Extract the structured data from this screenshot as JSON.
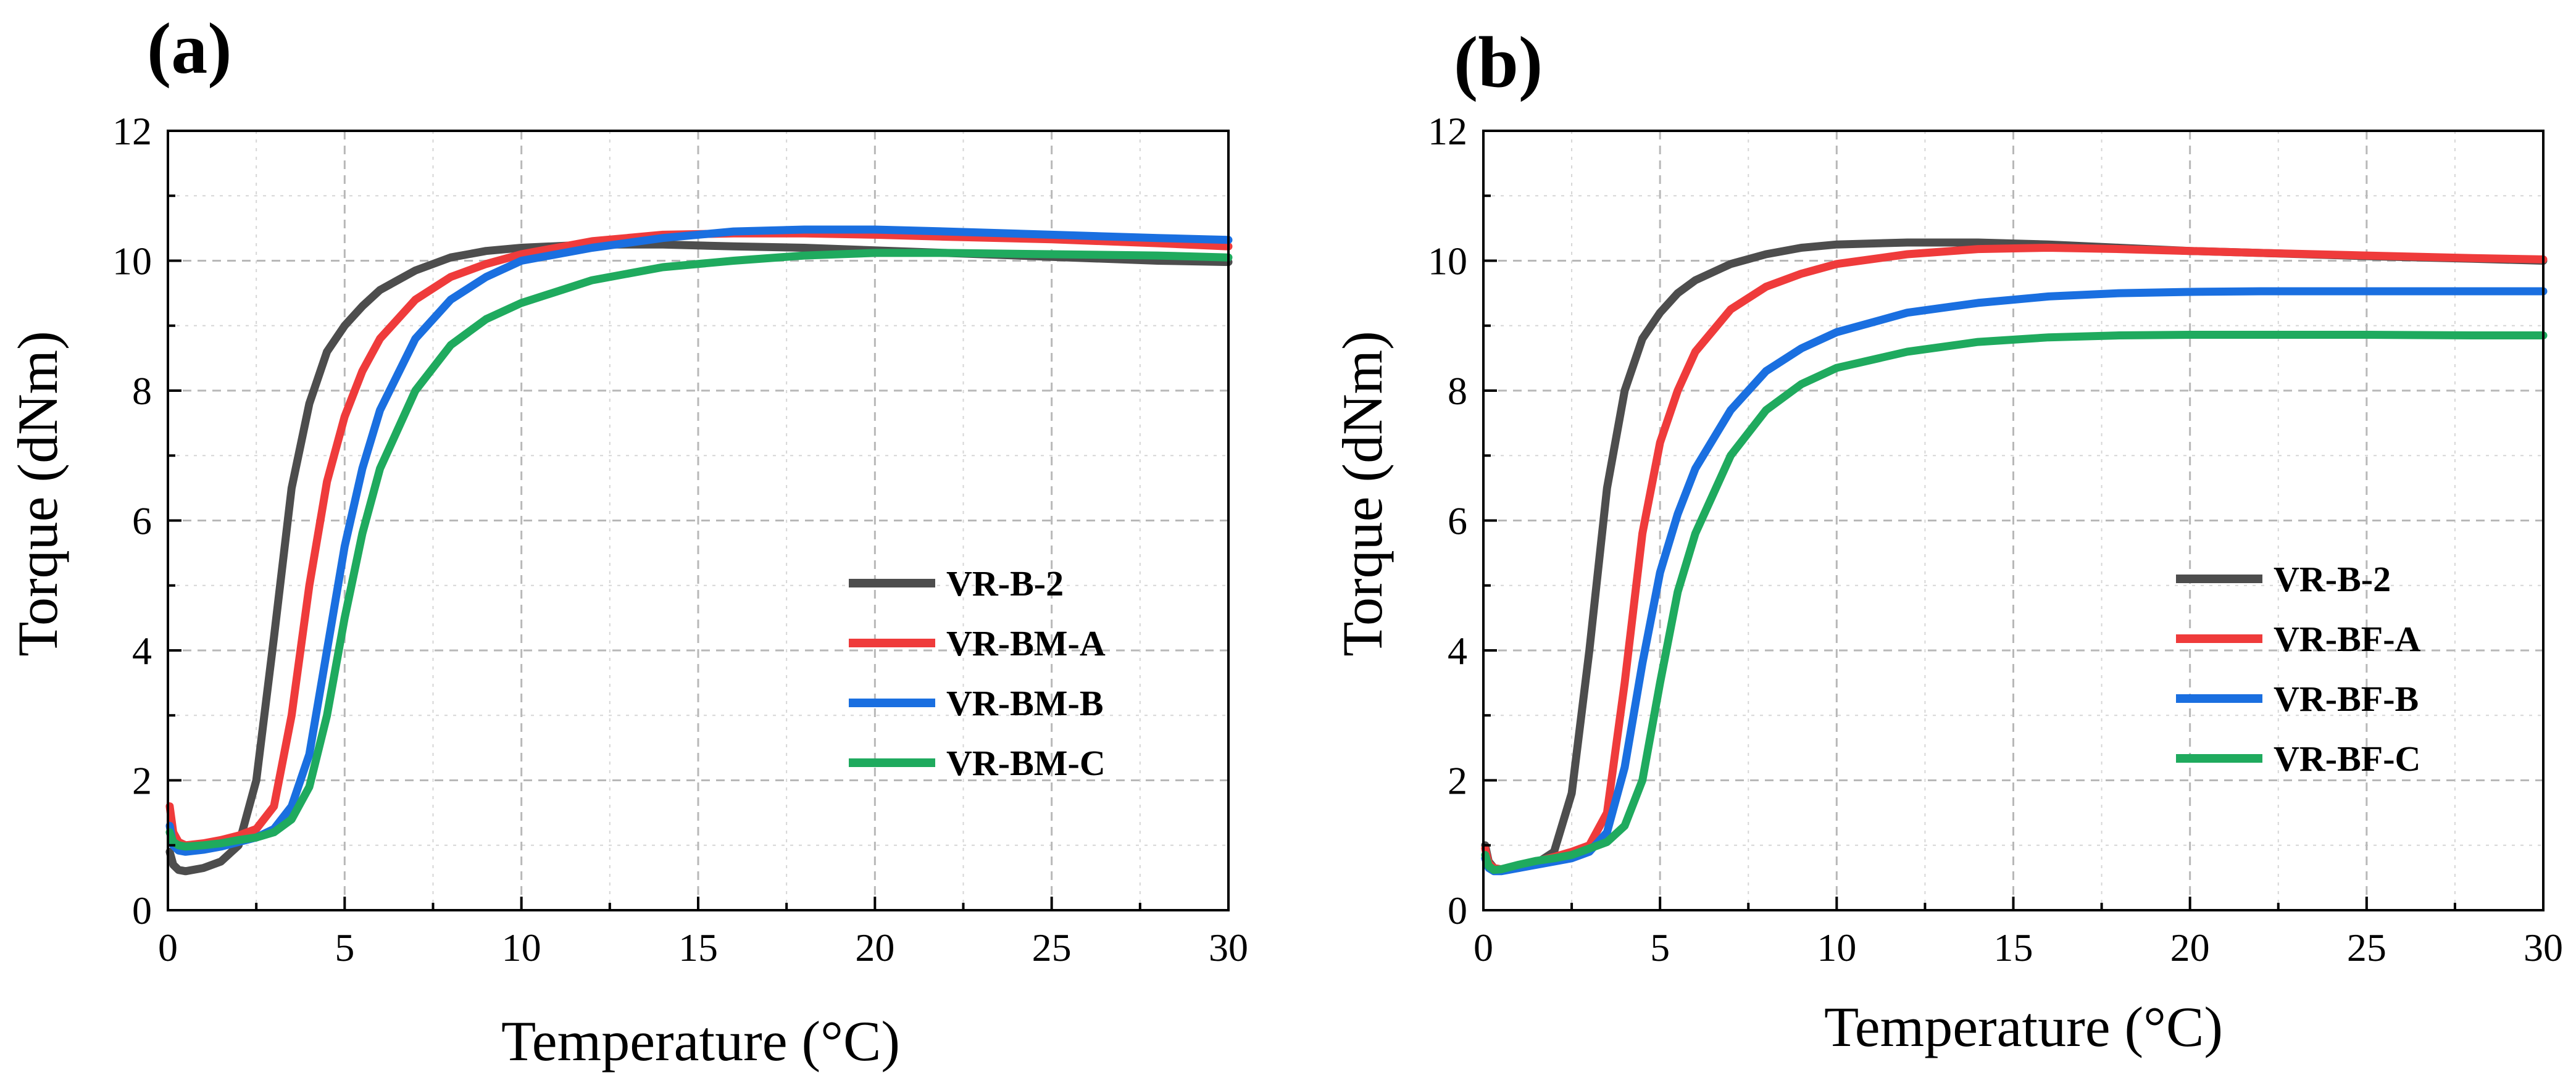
{
  "chart_data": [
    {
      "type": "line",
      "panel_label": "(a)",
      "xlabel": "Temperature (°C)",
      "ylabel": "Torque (dNm)",
      "xlim": [
        0,
        30
      ],
      "ylim": [
        0,
        12
      ],
      "xticks": [
        "0",
        "5",
        "10",
        "15",
        "20",
        "25",
        "30"
      ],
      "yticks": [
        "0",
        "2",
        "4",
        "6",
        "8",
        "10",
        "12"
      ],
      "grid": true,
      "legend_position": "center-right",
      "x": [
        0.05,
        0.15,
        0.3,
        0.5,
        1,
        1.5,
        2,
        2.5,
        3,
        3.5,
        4,
        4.5,
        5,
        5.5,
        6,
        7,
        8,
        9,
        10,
        12,
        14,
        16,
        18,
        20,
        22,
        25,
        28,
        30
      ],
      "series": [
        {
          "name": "VR-B-2",
          "color": "#4d4d4d",
          "values": [
            0.9,
            0.7,
            0.62,
            0.6,
            0.65,
            0.75,
            1.0,
            2.0,
            4.2,
            6.5,
            7.8,
            8.6,
            9.0,
            9.3,
            9.55,
            9.85,
            10.05,
            10.15,
            10.2,
            10.25,
            10.25,
            10.22,
            10.2,
            10.16,
            10.12,
            10.06,
            10.0,
            9.98
          ]
        },
        {
          "name": "VR-BM-A",
          "color": "#ef3b3b",
          "values": [
            1.6,
            1.2,
            1.05,
            1.0,
            1.03,
            1.08,
            1.15,
            1.25,
            1.6,
            3.0,
            5.0,
            6.6,
            7.6,
            8.3,
            8.8,
            9.4,
            9.75,
            9.95,
            10.1,
            10.3,
            10.4,
            10.42,
            10.42,
            10.4,
            10.37,
            10.33,
            10.27,
            10.22
          ]
        },
        {
          "name": "VR-BM-B",
          "color": "#1a6fe0",
          "values": [
            1.3,
            1.0,
            0.92,
            0.9,
            0.93,
            0.98,
            1.05,
            1.12,
            1.25,
            1.6,
            2.4,
            4.0,
            5.6,
            6.8,
            7.7,
            8.8,
            9.4,
            9.75,
            10.0,
            10.2,
            10.35,
            10.45,
            10.48,
            10.48,
            10.45,
            10.4,
            10.35,
            10.32
          ]
        },
        {
          "name": "VR-BM-C",
          "color": "#1faa5e",
          "values": [
            1.2,
            1.05,
            1.0,
            0.98,
            1.0,
            1.03,
            1.08,
            1.12,
            1.2,
            1.4,
            1.9,
            3.0,
            4.5,
            5.8,
            6.8,
            8.0,
            8.7,
            9.1,
            9.35,
            9.7,
            9.9,
            10.0,
            10.08,
            10.12,
            10.12,
            10.1,
            10.08,
            10.05
          ]
        }
      ],
      "legend": [
        "VR-B-2",
        "VR-BM-A",
        "VR-BM-B",
        "VR-BM-C"
      ]
    },
    {
      "type": "line",
      "panel_label": "(b)",
      "xlabel": "Temperature (°C)",
      "ylabel": "Torque (dNm)",
      "xlim": [
        0,
        30
      ],
      "ylim": [
        0,
        12
      ],
      "xticks": [
        "0",
        "5",
        "10",
        "15",
        "20",
        "25",
        "30"
      ],
      "yticks": [
        "0",
        "2",
        "4",
        "6",
        "8",
        "10",
        "12"
      ],
      "grid": true,
      "legend_position": "center-right",
      "x": [
        0.05,
        0.15,
        0.3,
        0.5,
        1,
        1.5,
        2,
        2.5,
        3,
        3.5,
        4,
        4.5,
        5,
        5.5,
        6,
        7,
        8,
        9,
        10,
        12,
        14,
        16,
        18,
        20,
        22,
        25,
        28,
        30
      ],
      "series": [
        {
          "name": "VR-B-2",
          "color": "#4d4d4d",
          "values": [
            1.0,
            0.75,
            0.65,
            0.62,
            0.65,
            0.72,
            0.9,
            1.8,
            4.0,
            6.5,
            8.0,
            8.8,
            9.2,
            9.5,
            9.7,
            9.95,
            10.1,
            10.2,
            10.25,
            10.28,
            10.28,
            10.25,
            10.2,
            10.15,
            10.12,
            10.07,
            10.03,
            10.0
          ]
        },
        {
          "name": "VR-BF-A",
          "color": "#ef3b3b",
          "values": [
            0.95,
            0.72,
            0.65,
            0.63,
            0.68,
            0.75,
            0.82,
            0.9,
            1.0,
            1.5,
            3.5,
            5.8,
            7.2,
            8.0,
            8.6,
            9.25,
            9.6,
            9.8,
            9.95,
            10.1,
            10.18,
            10.2,
            10.18,
            10.15,
            10.12,
            10.08,
            10.04,
            10.02
          ]
        },
        {
          "name": "VR-BF-B",
          "color": "#1a6fe0",
          "values": [
            0.8,
            0.65,
            0.6,
            0.6,
            0.65,
            0.7,
            0.75,
            0.8,
            0.9,
            1.2,
            2.2,
            3.8,
            5.2,
            6.1,
            6.8,
            7.7,
            8.3,
            8.65,
            8.9,
            9.2,
            9.35,
            9.45,
            9.5,
            9.52,
            9.53,
            9.53,
            9.53,
            9.53
          ]
        },
        {
          "name": "VR-BF-C",
          "color": "#1faa5e",
          "values": [
            0.85,
            0.68,
            0.62,
            0.63,
            0.7,
            0.76,
            0.8,
            0.85,
            0.95,
            1.05,
            1.3,
            2.0,
            3.5,
            4.9,
            5.8,
            7.0,
            7.7,
            8.1,
            8.35,
            8.6,
            8.75,
            8.82,
            8.85,
            8.86,
            8.86,
            8.86,
            8.85,
            8.85
          ]
        }
      ],
      "legend": [
        "VR-B-2",
        "VR-BF-A",
        "VR-BF-B",
        "VR-BF-C"
      ]
    }
  ]
}
